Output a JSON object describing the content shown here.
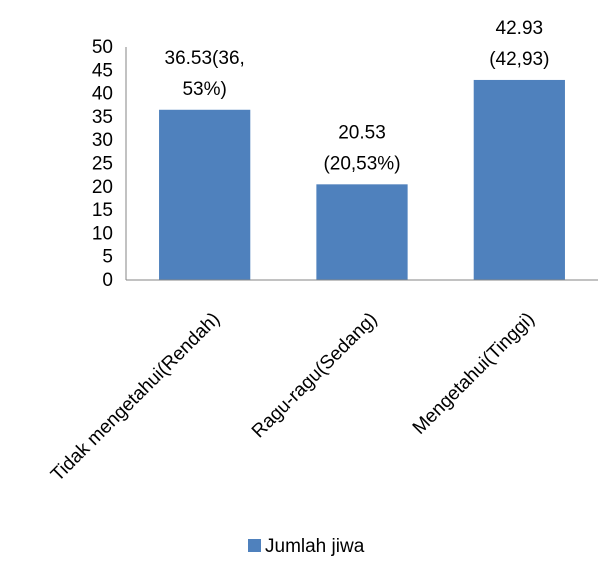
{
  "chart_data": {
    "type": "bar",
    "categories": [
      "Tidak mengetahui(Rendah)",
      "Ragu-ragu(Sedang)",
      "Mengetahui(Tinggi)"
    ],
    "series": [
      {
        "name": "Jumlah jiwa",
        "values": [
          36.53,
          20.53,
          42.93
        ],
        "color": "#4F81BD"
      }
    ],
    "data_labels": [
      [
        "36.53(36,",
        "53%)"
      ],
      [
        "20.53",
        "(20,53%)"
      ],
      [
        "42.93",
        "(42,93)"
      ]
    ],
    "y_ticks": [
      0,
      5,
      10,
      15,
      20,
      25,
      30,
      35,
      40,
      45,
      50
    ],
    "ylim": [
      0,
      50
    ],
    "grid": false,
    "legend_position": "bottom"
  }
}
